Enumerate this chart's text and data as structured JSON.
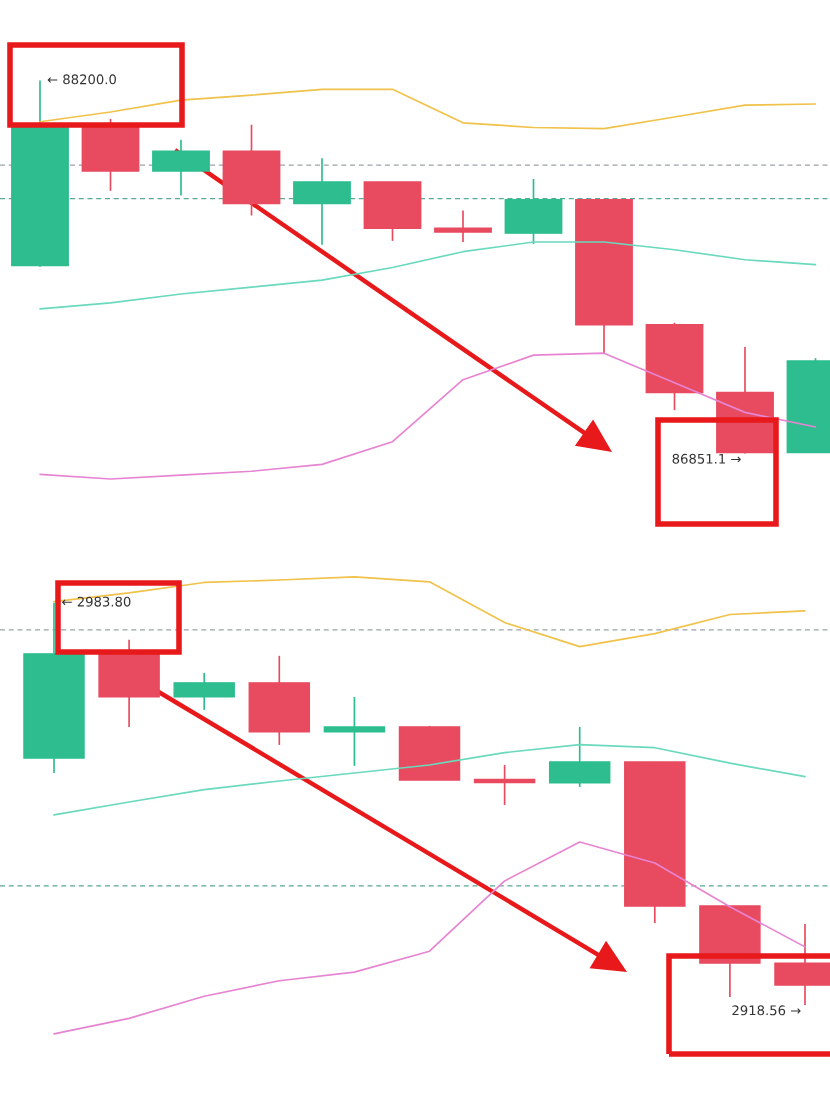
{
  "chart_data": [
    {
      "type": "candlestick",
      "categories": [
        null,
        null,
        null,
        null,
        null,
        null,
        null,
        null,
        null,
        null,
        null,
        null
      ],
      "ohlc": [
        [
          87531,
          88200,
          87527,
          88036
        ],
        [
          88036,
          88061,
          87801,
          87873
        ],
        [
          87873,
          87986,
          87784,
          87944
        ],
        [
          87944,
          88040,
          87712,
          87755
        ],
        [
          87755,
          87919,
          87606,
          87833
        ],
        [
          87833,
          87833,
          87620,
          87666
        ],
        [
          87666,
          87730,
          87616,
          87652
        ],
        [
          87648,
          87844,
          87609,
          87769
        ],
        [
          87769,
          87769,
          87214,
          87317
        ],
        [
          87317,
          87324,
          87008,
          87072
        ],
        [
          87072,
          87236,
          86851.1,
          86855
        ],
        [
          86855,
          87196,
          86855,
          87186
        ]
      ],
      "colors": [
        "#2dbd8f",
        "#e84a5f",
        "#2dbd8f",
        "#e84a5f",
        "#2dbd8f",
        "#e84a5f",
        "#e84a5f",
        "#2dbd8f",
        "#e84a5f",
        "#e84a5f",
        "#e84a5f",
        "#2dbd8f"
      ],
      "series": [
        {
          "type": "line",
          "color": "#f0c24a",
          "values": [
            88051,
            88086,
            88129,
            88147,
            88168,
            88168,
            88047,
            88030,
            88026,
            88068,
            88111,
            88115
          ]
        },
        {
          "type": "line",
          "color": "#6ad9bd",
          "values": [
            87374,
            87396,
            87428,
            87453,
            87478,
            87524,
            87581,
            87616,
            87616,
            87588,
            87552,
            87534
          ]
        },
        {
          "type": "line",
          "color": "#e784d2",
          "values": [
            86776,
            86759,
            86773,
            86787,
            86812,
            86894,
            87118,
            87207,
            87214,
            87107,
            87000,
            86947
          ]
        }
      ],
      "ref_lines": [
        {
          "axis": "y",
          "value": 87894,
          "color": "#9aa3ab",
          "line_style": "dashed"
        },
        {
          "axis": "y",
          "value": 87773,
          "color": "#5aa898",
          "line_style": "dashed"
        }
      ],
      "annotations": [
        "← 88200.0",
        "86851.1 →"
      ]
    },
    {
      "type": "candlestick",
      "categories": [
        null,
        null,
        null,
        null,
        null,
        null,
        null,
        null,
        null,
        null,
        null
      ],
      "ohlc": [
        [
          2958.64,
          2983.8,
          2956.21,
          2975.52
        ],
        [
          2975.52,
          2977.8,
          2963.67,
          2968.54
        ],
        [
          2968.54,
          2972.44,
          2966.43,
          2970.82
        ],
        [
          2970.82,
          2975.2,
          2960.75,
          2962.86
        ],
        [
          2962.86,
          2968.54,
          2957.35,
          2963.67
        ],
        [
          2963.67,
          2963.84,
          2955.07,
          2955.07
        ],
        [
          2955.15,
          2957.51,
          2951.02,
          2954.65
        ],
        [
          2954.59,
          2963.67,
          2953.94,
          2958.0
        ],
        [
          2958.0,
          2958.0,
          2931.86,
          2934.62
        ],
        [
          2934.62,
          2934.62,
          2919.85,
          2925.37
        ],
        [
          2925.37,
          2931.7,
          2918.56,
          2921.8
        ]
      ],
      "colors": [
        "#2dbd8f",
        "#e84a5f",
        "#2dbd8f",
        "#e84a5f",
        "#2dbd8f",
        "#e84a5f",
        "#e84a5f",
        "#2dbd8f",
        "#e84a5f",
        "#e84a5f",
        "#e84a5f"
      ],
      "series": [
        {
          "type": "line",
          "color": "#f0c24a",
          "values": [
            2984.0,
            2985.4,
            2987.1,
            2987.5,
            2988.0,
            2987.2,
            2980.6,
            2976.7,
            2978.8,
            2981.9,
            2982.5
          ]
        },
        {
          "type": "line",
          "color": "#6ad9bd",
          "values": [
            2949.4,
            2951.5,
            2953.5,
            2954.9,
            2956.2,
            2957.5,
            2959.5,
            2960.8,
            2960.3,
            2957.8,
            2955.6
          ]
        },
        {
          "type": "line",
          "color": "#e784d2",
          "values": [
            2913.9,
            2916.4,
            2920.0,
            2922.5,
            2923.9,
            2927.3,
            2938.7,
            2945.0,
            2941.6,
            2934.5,
            2928.0
          ]
        }
      ],
      "ref_lines": [
        {
          "axis": "y",
          "value": 2979.4,
          "color": "#9aa3ab",
          "line_style": "dashed"
        },
        {
          "axis": "y",
          "value": 2937.9,
          "color": "#5aa898",
          "line_style": "dashed"
        }
      ],
      "annotations": [
        "← 2983.80",
        "2918.56 →"
      ]
    }
  ]
}
